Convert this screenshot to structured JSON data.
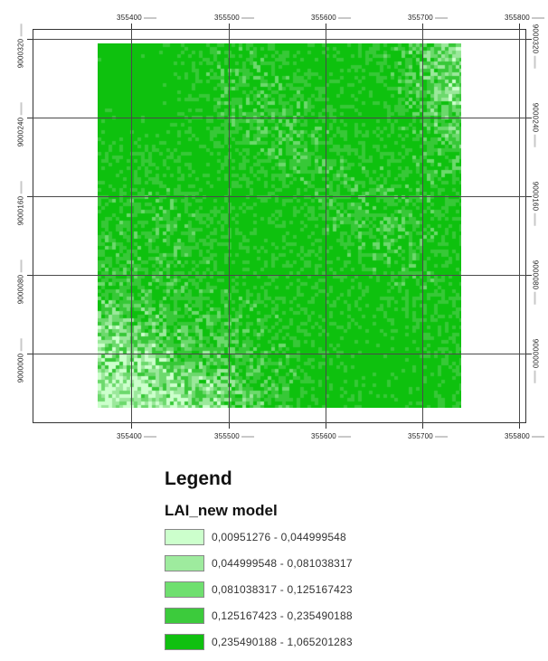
{
  "map": {
    "x_ticks": [
      "355400",
      "355500",
      "355600",
      "355700",
      "355800"
    ],
    "y_ticks": [
      "9000320",
      "9000240",
      "9000160",
      "9000080",
      "9000000"
    ],
    "grid": true,
    "raster_colors": [
      "#ccffcc",
      "#9be89b",
      "#6cd96c",
      "#37c837",
      "#0ec10e"
    ]
  },
  "legend": {
    "title": "Legend",
    "layer_name": "LAI_new model",
    "classes": [
      {
        "label": "0,00951276 - 0,044999548",
        "color": "#ccffcc"
      },
      {
        "label": "0,044999548 - 0,081038317",
        "color": "#9eeb9e"
      },
      {
        "label": "0,081038317 - 0,125167423",
        "color": "#6fdf6f"
      },
      {
        "label": "0,125167423 - 0,235490188",
        "color": "#3ccb3c"
      },
      {
        "label": "0,235490188 - 1,065201283",
        "color": "#10c010"
      }
    ]
  }
}
